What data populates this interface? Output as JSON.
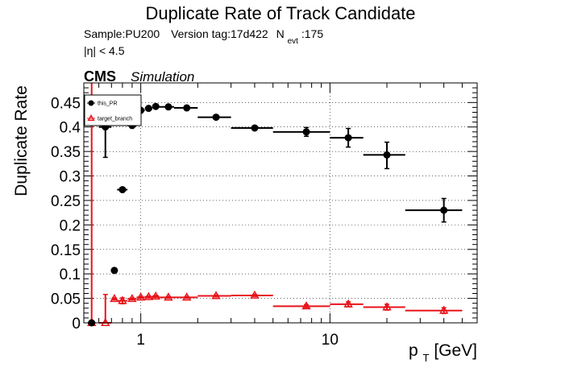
{
  "chart_data": {
    "type": "scatter",
    "title": "Duplicate Rate of Track Candidate",
    "subtitle_line1": {
      "sample": "Sample:PU200",
      "version": "Version tag:17d422",
      "nevt_prefix": "N",
      "nevt_sub": "evt",
      "nevt_value": ":175"
    },
    "subtitle_line2": "|η| < 4.5",
    "experiment": "CMS",
    "experiment_tag": "Simulation",
    "xlabel": {
      "main": "p",
      "sub": "T",
      "unit": " [GeV]"
    },
    "ylabel": "Duplicate Rate",
    "x_scale": "log",
    "xlim": [
      0.5,
      60
    ],
    "ylim": [
      0,
      0.49
    ],
    "x_tick_labels": [
      "1",
      "10"
    ],
    "y_tick_labels": [
      "0",
      "0.05",
      "0.1",
      "0.15",
      "0.2",
      "0.25",
      "0.3",
      "0.35",
      "0.4",
      "0.45"
    ],
    "grid": true,
    "legend_position": "top-left",
    "series": [
      {
        "name": "this_PR",
        "color": "#000000",
        "marker": "filled-circle",
        "points": [
          {
            "x": 0.55,
            "y": 0.0,
            "xlo": 0.525,
            "xhi": 0.575,
            "ylo": 0.0,
            "yhi": 0.0
          },
          {
            "x": 0.65,
            "y": 0.4,
            "xlo": 0.6,
            "xhi": 0.7,
            "ylo": 0.338,
            "yhi": 0.462
          },
          {
            "x": 0.725,
            "y": 0.107,
            "xlo": 0.7,
            "xhi": 0.75,
            "ylo": 0.104,
            "yhi": 0.11
          },
          {
            "x": 0.8,
            "y": 0.272,
            "xlo": 0.75,
            "xhi": 0.85,
            "ylo": 0.269,
            "yhi": 0.275
          },
          {
            "x": 0.9,
            "y": 0.403,
            "xlo": 0.85,
            "xhi": 0.95,
            "ylo": 0.4,
            "yhi": 0.406
          },
          {
            "x": 1.0,
            "y": 0.434,
            "xlo": 0.95,
            "xhi": 1.05,
            "ylo": 0.431,
            "yhi": 0.437
          },
          {
            "x": 1.1,
            "y": 0.438,
            "xlo": 1.05,
            "xhi": 1.15,
            "ylo": 0.435,
            "yhi": 0.441
          },
          {
            "x": 1.2,
            "y": 0.442,
            "xlo": 1.15,
            "xhi": 1.25,
            "ylo": 0.439,
            "yhi": 0.445
          },
          {
            "x": 1.4,
            "y": 0.441,
            "xlo": 1.25,
            "xhi": 1.5,
            "ylo": 0.438,
            "yhi": 0.444
          },
          {
            "x": 1.75,
            "y": 0.439,
            "xlo": 1.5,
            "xhi": 2.0,
            "ylo": 0.436,
            "yhi": 0.442
          },
          {
            "x": 2.5,
            "y": 0.42,
            "xlo": 2.0,
            "xhi": 3.0,
            "ylo": 0.417,
            "yhi": 0.423
          },
          {
            "x": 4.0,
            "y": 0.398,
            "xlo": 3.0,
            "xhi": 5.0,
            "ylo": 0.395,
            "yhi": 0.401
          },
          {
            "x": 7.5,
            "y": 0.39,
            "xlo": 5.0,
            "xhi": 10.0,
            "ylo": 0.381,
            "yhi": 0.399
          },
          {
            "x": 12.5,
            "y": 0.378,
            "xlo": 10.0,
            "xhi": 15.0,
            "ylo": 0.359,
            "yhi": 0.397
          },
          {
            "x": 20.0,
            "y": 0.343,
            "xlo": 15.0,
            "xhi": 25.0,
            "ylo": 0.315,
            "yhi": 0.369
          },
          {
            "x": 40.0,
            "y": 0.23,
            "xlo": 25.0,
            "xhi": 50.0,
            "ylo": 0.206,
            "yhi": 0.254
          }
        ]
      },
      {
        "name": "target_branch",
        "color": "#e8141b",
        "marker": "open-triangle",
        "points": [
          {
            "x": 0.55,
            "y": 0.0,
            "xlo": 0.525,
            "xhi": 0.575,
            "ylo": 0.0,
            "yhi": 0.49
          },
          {
            "x": 0.65,
            "y": 0.0,
            "xlo": 0.6,
            "xhi": 0.7,
            "ylo": 0.0,
            "yhi": 0.058
          },
          {
            "x": 0.725,
            "y": 0.049,
            "xlo": 0.7,
            "xhi": 0.75,
            "ylo": 0.047,
            "yhi": 0.051
          },
          {
            "x": 0.8,
            "y": 0.045,
            "xlo": 0.75,
            "xhi": 0.85,
            "ylo": 0.039,
            "yhi": 0.051
          },
          {
            "x": 0.9,
            "y": 0.049,
            "xlo": 0.85,
            "xhi": 0.95,
            "ylo": 0.047,
            "yhi": 0.051
          },
          {
            "x": 1.0,
            "y": 0.052,
            "xlo": 0.95,
            "xhi": 1.05,
            "ylo": 0.05,
            "yhi": 0.054
          },
          {
            "x": 1.1,
            "y": 0.053,
            "xlo": 1.05,
            "xhi": 1.15,
            "ylo": 0.051,
            "yhi": 0.055
          },
          {
            "x": 1.2,
            "y": 0.054,
            "xlo": 1.15,
            "xhi": 1.25,
            "ylo": 0.052,
            "yhi": 0.056
          },
          {
            "x": 1.4,
            "y": 0.052,
            "xlo": 1.25,
            "xhi": 1.5,
            "ylo": 0.05,
            "yhi": 0.054
          },
          {
            "x": 1.75,
            "y": 0.052,
            "xlo": 1.5,
            "xhi": 2.0,
            "ylo": 0.05,
            "yhi": 0.054
          },
          {
            "x": 2.5,
            "y": 0.055,
            "xlo": 2.0,
            "xhi": 3.0,
            "ylo": 0.053,
            "yhi": 0.057
          },
          {
            "x": 4.0,
            "y": 0.056,
            "xlo": 3.0,
            "xhi": 5.0,
            "ylo": 0.054,
            "yhi": 0.058
          },
          {
            "x": 7.5,
            "y": 0.034,
            "xlo": 5.0,
            "xhi": 10.0,
            "ylo": 0.031,
            "yhi": 0.037
          },
          {
            "x": 12.5,
            "y": 0.038,
            "xlo": 10.0,
            "xhi": 15.0,
            "ylo": 0.033,
            "yhi": 0.043
          },
          {
            "x": 20.0,
            "y": 0.032,
            "xlo": 15.0,
            "xhi": 25.0,
            "ylo": 0.026,
            "yhi": 0.038
          },
          {
            "x": 40.0,
            "y": 0.025,
            "xlo": 25.0,
            "xhi": 50.0,
            "ylo": 0.019,
            "yhi": 0.031
          }
        ]
      }
    ]
  }
}
